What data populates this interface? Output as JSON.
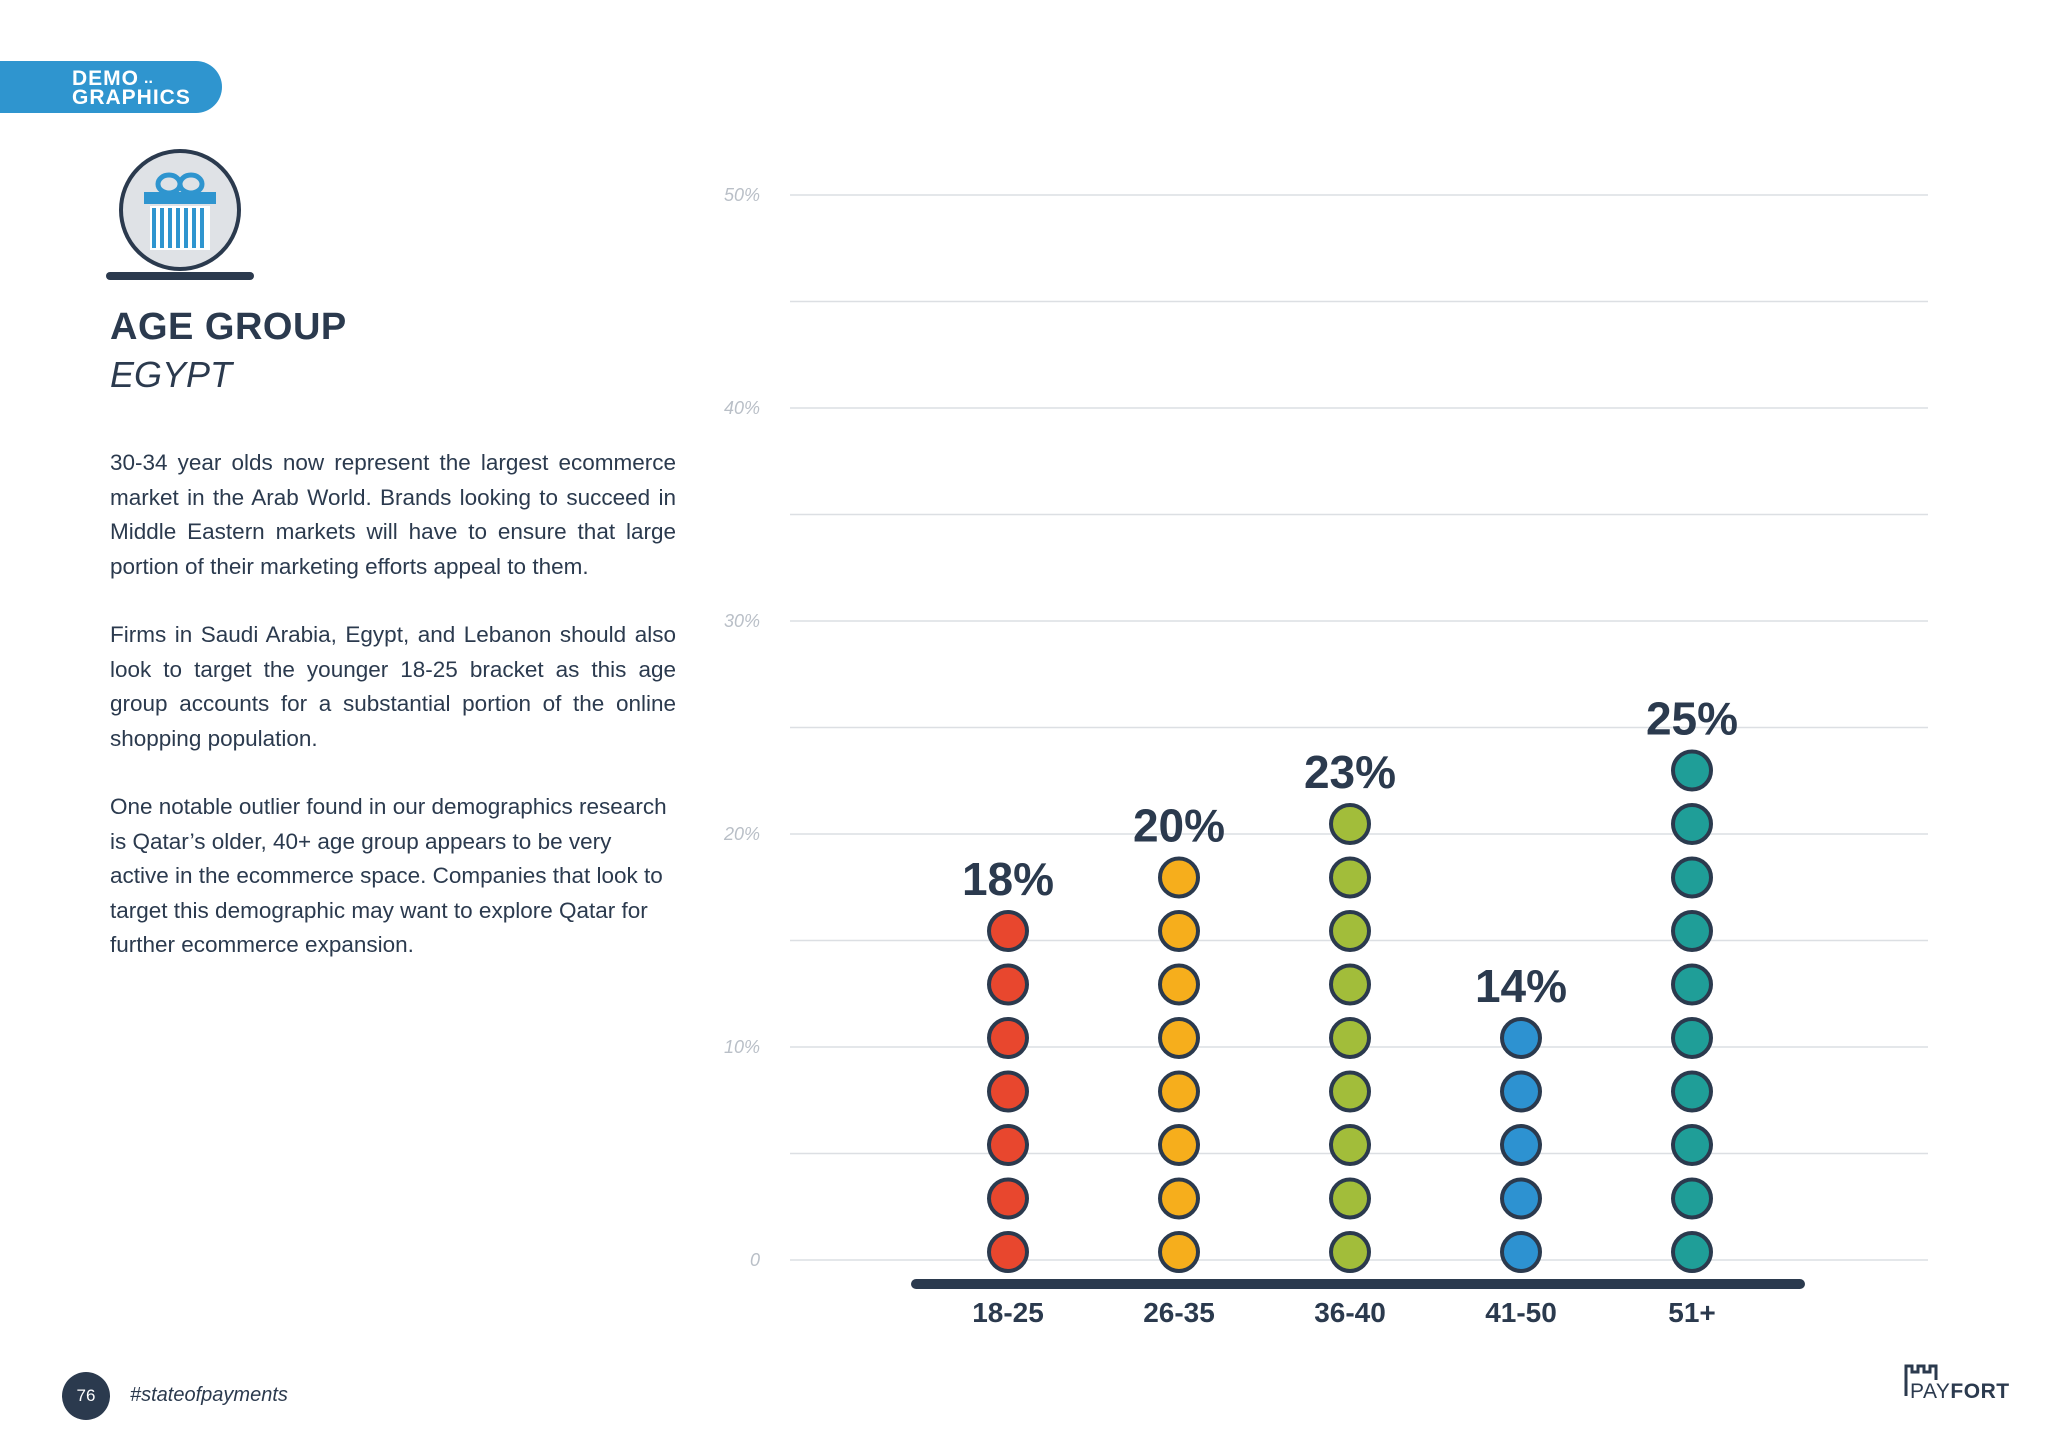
{
  "section_tab": {
    "line1": "DEMO",
    "dots": "..",
    "line2": "GRAPHICS"
  },
  "icon": {
    "name": "gift-icon"
  },
  "heading": {
    "title": "AGE GROUP",
    "subtitle": "EGYPT"
  },
  "paragraphs": [
    "30-34 year olds now represent the largest ecommerce market in the Arab World. Brands looking to succeed in Middle Eastern markets will have to ensure that large portion of their marketing efforts appeal to them.",
    "Firms in Saudi Arabia, Egypt, and Lebanon should also look to target the younger 18-25 bracket as this age group accounts for a substantial portion of the online shopping population.",
    "One notable outlier found in our demographics research is Qatar’s older, 40+ age group appears to be very active in the ecommerce space. Companies that look to target this demographic may want to explore Qatar for further ecommerce expansion."
  ],
  "chart_data": {
    "type": "bar",
    "title": "",
    "xlabel": "",
    "ylabel": "",
    "ylim": [
      0,
      50
    ],
    "yticks": [
      "0",
      "10%",
      "20%",
      "30%",
      "40%",
      "50%"
    ],
    "categories": [
      "18-25",
      "26-35",
      "36-40",
      "41-50",
      "51+"
    ],
    "values": [
      18,
      20,
      23,
      14,
      25
    ],
    "value_labels": [
      "18%",
      "20%",
      "23%",
      "14%",
      "25%"
    ],
    "dot_counts": [
      7,
      8,
      9,
      5,
      10
    ],
    "colors": [
      "#e8472e",
      "#f6ae1c",
      "#a2bd3a",
      "#2d92d1",
      "#1f9e98"
    ],
    "grid": true
  },
  "footer": {
    "page_number": "76",
    "hashtag": "#stateofpayments",
    "logo_light": "PAY",
    "logo_bold": "FORT"
  },
  "colors": {
    "navy": "#2b3a4e",
    "blue": "#2f95cf",
    "grid": "#dcdfe3",
    "tick": "#b9bfc7"
  }
}
